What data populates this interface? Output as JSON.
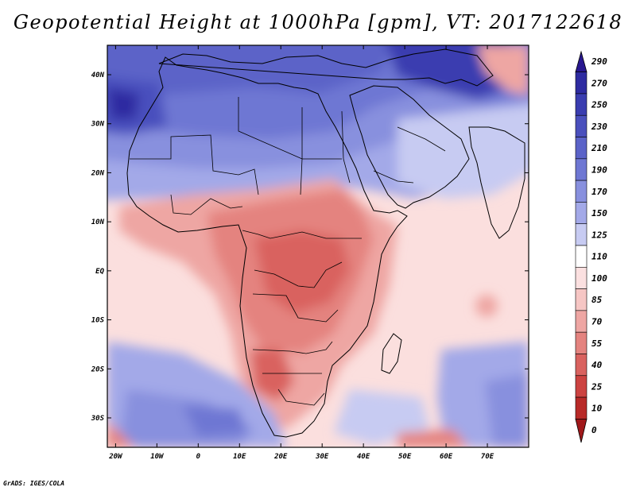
{
  "title": "Geopotential Height at 1000hPa [gpm], VT: 2017122618",
  "credit": "GrADS: IGES/COLA",
  "map": {
    "variable": "Geopotential Height",
    "level_hpa": 1000,
    "units": "gpm",
    "valid_time": "2017122618",
    "lon_range": [
      -22,
      80
    ],
    "lat_range": [
      -36,
      46
    ],
    "lat_ticks": [
      {
        "lat": 40,
        "label": "40N"
      },
      {
        "lat": 30,
        "label": "30N"
      },
      {
        "lat": 20,
        "label": "20N"
      },
      {
        "lat": 10,
        "label": "10N"
      },
      {
        "lat": 0,
        "label": "EQ"
      },
      {
        "lat": -10,
        "label": "10S"
      },
      {
        "lat": -20,
        "label": "20S"
      },
      {
        "lat": -30,
        "label": "30S"
      }
    ],
    "lon_ticks": [
      {
        "lon": -20,
        "label": "20W"
      },
      {
        "lon": -10,
        "label": "10W"
      },
      {
        "lon": 0,
        "label": "0"
      },
      {
        "lon": 10,
        "label": "10E"
      },
      {
        "lon": 20,
        "label": "20E"
      },
      {
        "lon": 30,
        "label": "30E"
      },
      {
        "lon": 40,
        "label": "40E"
      },
      {
        "lon": 50,
        "label": "50E"
      },
      {
        "lon": 60,
        "label": "60E"
      },
      {
        "lon": 70,
        "label": "70E"
      }
    ]
  },
  "colorbar": {
    "labels": [
      "290",
      "270",
      "250",
      "230",
      "210",
      "190",
      "170",
      "150",
      "125",
      "110",
      "100",
      "85",
      "70",
      "55",
      "40",
      "25",
      "10",
      "0"
    ],
    "colors": [
      "#28178f",
      "#2e2ba1",
      "#3a3db0",
      "#4a50bd",
      "#5b63c8",
      "#6e77d3",
      "#8890de",
      "#a3a9e8",
      "#c7cbf2",
      "#ffffff",
      "#fbe0e0",
      "#f6c6c4",
      "#eea6a3",
      "#e4837f",
      "#d9625f",
      "#cc4341",
      "#b82a28",
      "#a0181a"
    ]
  }
}
